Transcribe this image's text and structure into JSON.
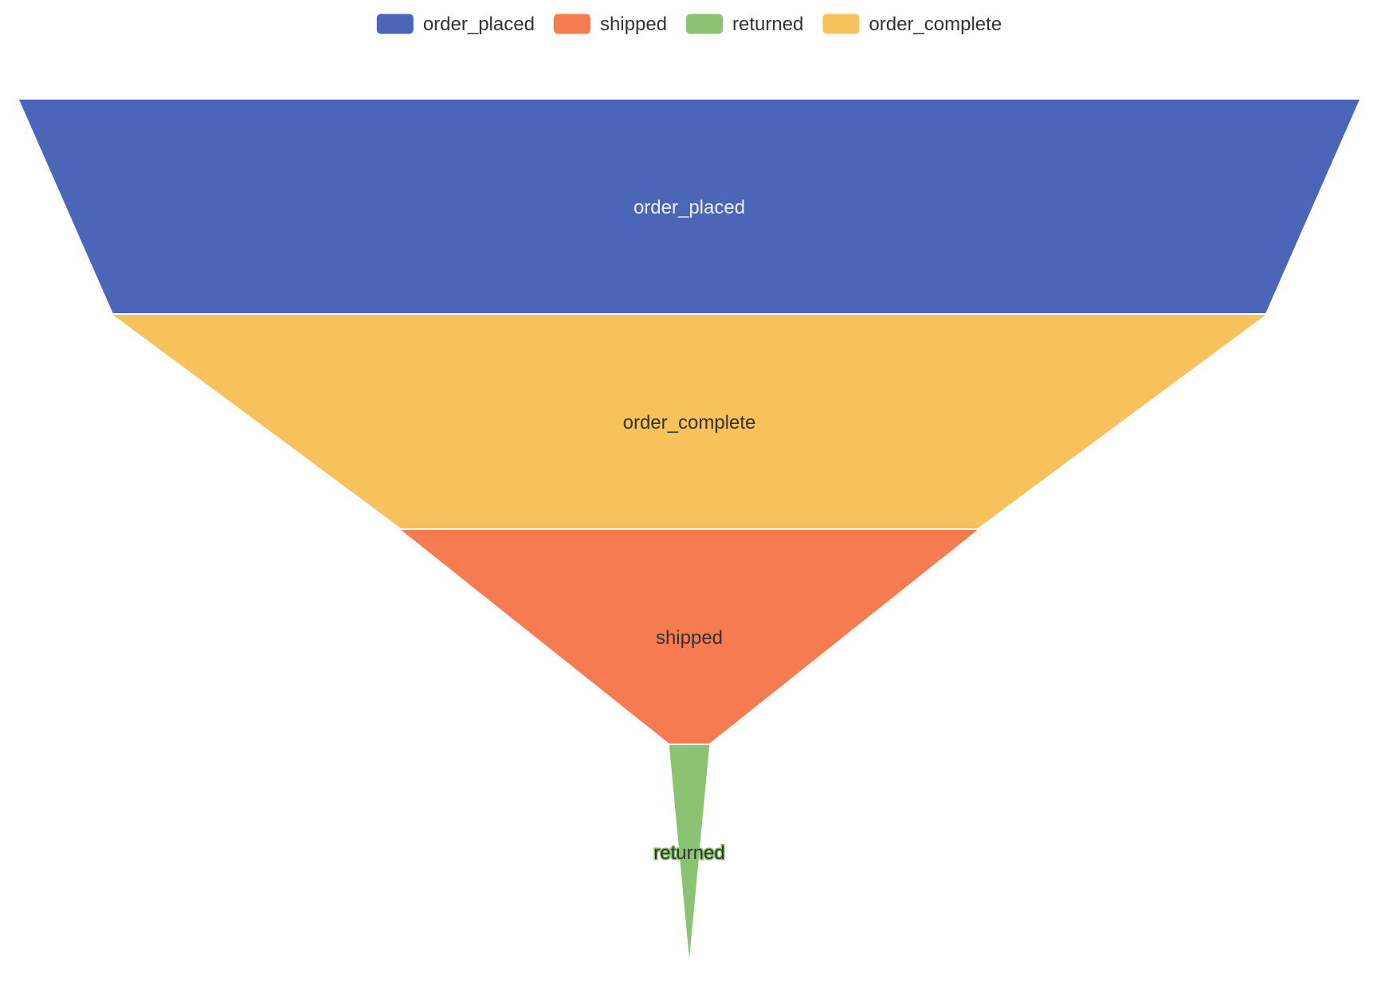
{
  "chart_data": {
    "type": "funnel",
    "legend": {
      "placement": "top-center",
      "items": [
        {
          "name": "order_placed",
          "color": "#4b66b8"
        },
        {
          "name": "shipped",
          "color": "#f77b50"
        },
        {
          "name": "returned",
          "color": "#8bc372"
        },
        {
          "name": "order_complete",
          "color": "#f7c15c"
        }
      ]
    },
    "stages": [
      {
        "name": "order_placed",
        "value": 100,
        "color": "#4b66b8",
        "label_color": "#eeeeee"
      },
      {
        "name": "order_complete",
        "value": 86,
        "color": "#f7c15c",
        "label_color": "#333333"
      },
      {
        "name": "shipped",
        "value": 43,
        "color": "#f77b50",
        "label_color": "#333333"
      },
      {
        "name": "returned",
        "value": 3,
        "color": "#8bc372",
        "label_color": "#333333",
        "label_outline": "#8bc372"
      }
    ],
    "sort": "descending",
    "max_value": 100,
    "min_value": 0
  }
}
